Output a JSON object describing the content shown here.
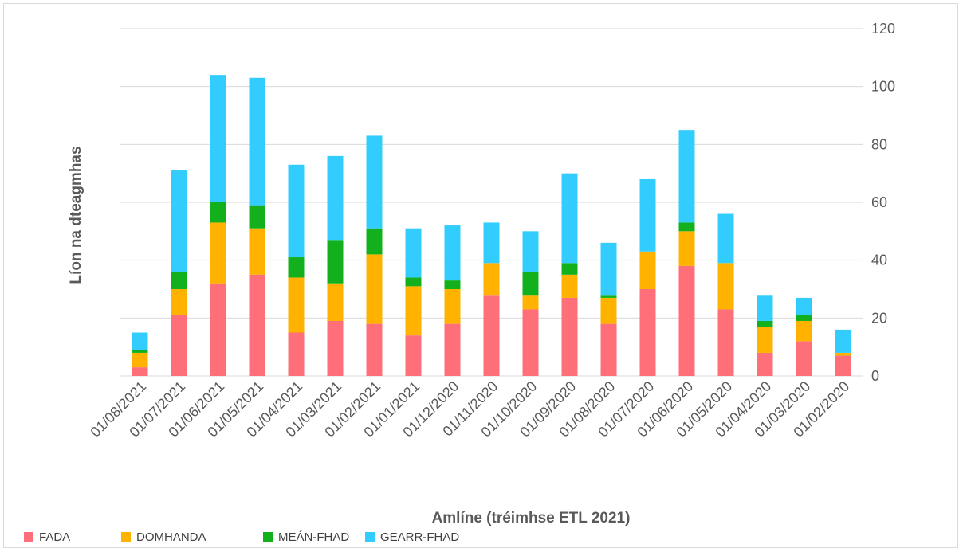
{
  "chart_data": {
    "type": "bar",
    "stacked": true,
    "title": "",
    "xlabel": "Amlíne (tréimhse ETL 2021)",
    "ylabel": "Líon na dteagmhas",
    "ylim": [
      0,
      120
    ],
    "yticks": [
      0,
      20,
      40,
      60,
      80,
      100,
      120
    ],
    "y_axis_position": "right",
    "grid": true,
    "legend_position": "bottom-left",
    "categories": [
      "01/08/2021",
      "01/07/2021",
      "01/06/2021",
      "01/05/2021",
      "01/04/2021",
      "01/03/2021",
      "01/02/2021",
      "01/01/2021",
      "01/12/2020",
      "01/11/2020",
      "01/10/2020",
      "01/09/2020",
      "01/08/2020",
      "01/07/2020",
      "01/06/2020",
      "01/05/2020",
      "01/04/2020",
      "01/03/2020",
      "01/02/2020"
    ],
    "series": [
      {
        "name": "FADA",
        "color": "#ff6f7a",
        "values": [
          3,
          21,
          32,
          35,
          15,
          19,
          18,
          14,
          18,
          28,
          23,
          27,
          18,
          30,
          38,
          23,
          8,
          12,
          7
        ]
      },
      {
        "name": "DOMHANDA",
        "color": "#ffb300",
        "values": [
          5,
          9,
          21,
          16,
          19,
          13,
          24,
          17,
          12,
          11,
          5,
          8,
          9,
          13,
          12,
          16,
          9,
          7,
          1
        ]
      },
      {
        "name": "MEÁN-FHAD",
        "color": "#13b01e",
        "values": [
          1,
          6,
          7,
          8,
          7,
          15,
          9,
          3,
          3,
          0,
          8,
          4,
          1,
          0,
          3,
          0,
          2,
          2,
          0
        ]
      },
      {
        "name": "GEARR-FHAD",
        "color": "#33ccff",
        "values": [
          6,
          35,
          44,
          44,
          32,
          29,
          32,
          17,
          19,
          14,
          14,
          31,
          18,
          25,
          32,
          17,
          9,
          6,
          8
        ]
      }
    ]
  }
}
